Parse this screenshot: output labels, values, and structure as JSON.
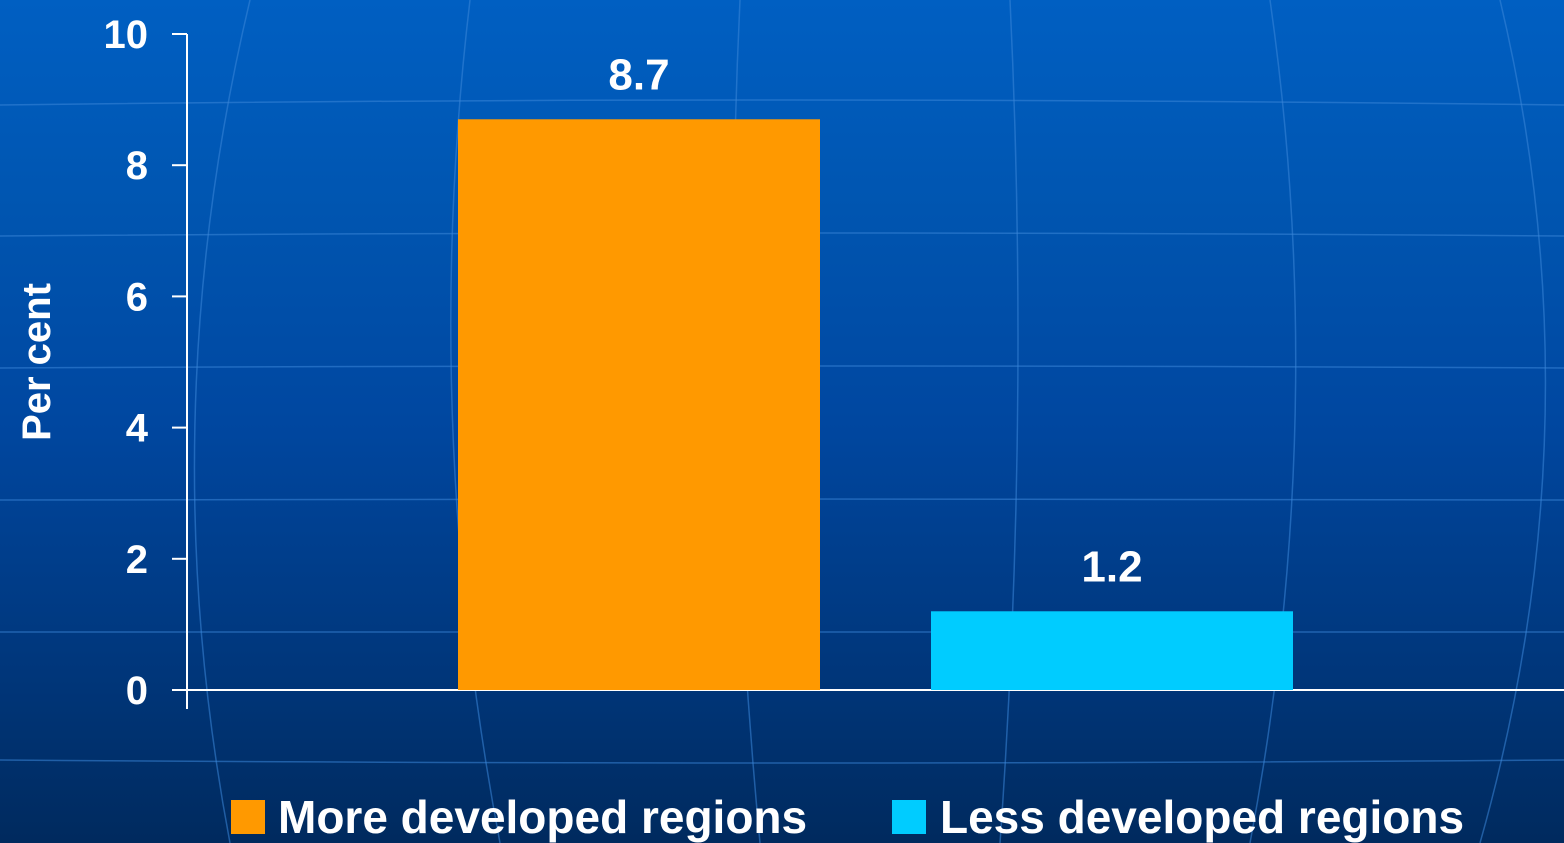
{
  "colors": {
    "background_top": "#005fc2",
    "background_bottom": "#002a5e",
    "axis": "#ffffff",
    "text": "#ffffff"
  },
  "chart_data": {
    "type": "bar",
    "title": "",
    "xlabel": "",
    "ylabel": "Per cent",
    "ylim": [
      0,
      10
    ],
    "yticks": [
      0,
      2,
      4,
      6,
      8,
      10
    ],
    "ytick_labels": [
      "0",
      "2",
      "4",
      "6",
      "8",
      "10"
    ],
    "grid": false,
    "legend_position": "bottom",
    "series": [
      {
        "name": "More developed regions",
        "values": [
          8.7
        ],
        "value_labels": [
          "8.7"
        ],
        "color": "#ff9900"
      },
      {
        "name": "Less developed regions",
        "values": [
          1.2
        ],
        "value_labels": [
          "1.2"
        ],
        "color": "#00ccff"
      }
    ]
  }
}
